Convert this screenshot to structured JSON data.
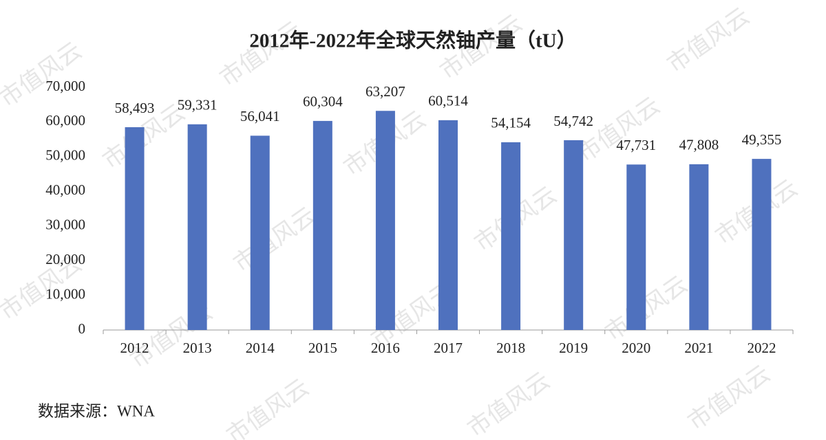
{
  "chart_data": {
    "type": "bar",
    "title": "2012年-2022年全球天然铀产量（tU）",
    "categories": [
      "2012",
      "2013",
      "2014",
      "2015",
      "2016",
      "2017",
      "2018",
      "2019",
      "2020",
      "2021",
      "2022"
    ],
    "values": [
      58493,
      59331,
      56041,
      60304,
      63207,
      60514,
      54154,
      54742,
      47731,
      47808,
      49355
    ],
    "value_labels": [
      "58,493",
      "59,331",
      "56,041",
      "60,304",
      "63,207",
      "60,514",
      "54,154",
      "54,742",
      "47,731",
      "47,808",
      "49,355"
    ],
    "color": "#4f71be",
    "ylim": [
      0,
      70000
    ],
    "yticks": [
      0,
      {
        "value": 10000,
        "label": "10,000"
      },
      {
        "value": 20000,
        "label": "20,000"
      },
      {
        "value": 30000,
        "label": "30,000"
      },
      {
        "value": 40000,
        "label": "40,000"
      },
      {
        "value": 50000,
        "label": "50,000"
      },
      {
        "value": 60000,
        "label": "60,000"
      },
      {
        "value": 70000,
        "label": "70,000"
      }
    ],
    "grid": false,
    "source": "数据来源：WNA",
    "watermark": "市值风云"
  }
}
